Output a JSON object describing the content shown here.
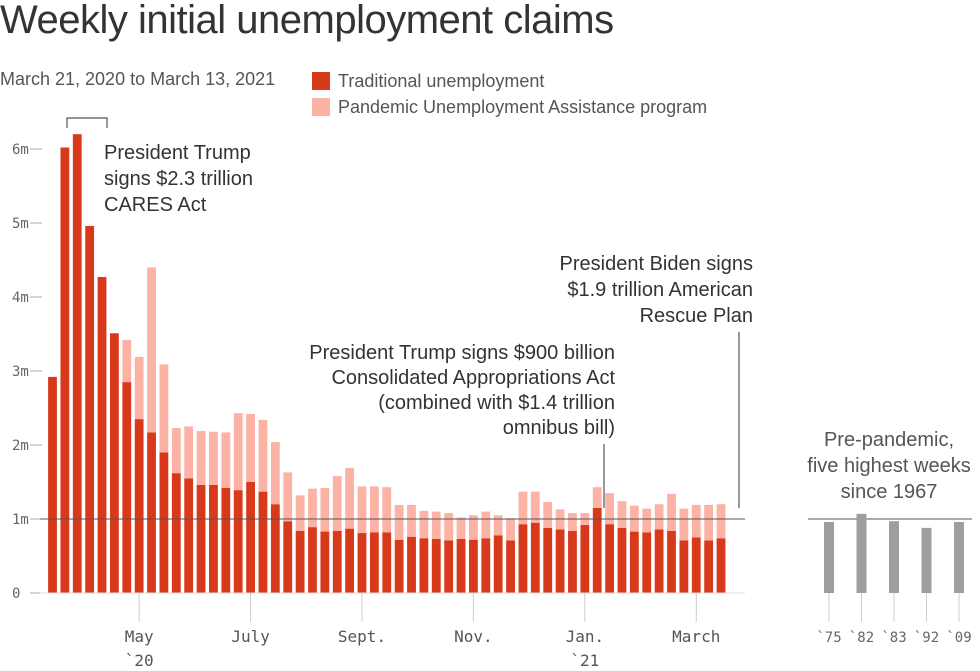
{
  "header": {
    "title": "Weekly initial unemployment claims",
    "subtitle": "March 21, 2020 to March 13, 2021"
  },
  "legend": {
    "items": [
      {
        "label": "Traditional unemployment",
        "color": "#d9391b"
      },
      {
        "label": "Pandemic Unemployment Assistance program",
        "color": "#fcb3a6"
      }
    ]
  },
  "annotations": {
    "cares": [
      "President Trump",
      "signs $2.3 trillion",
      "CARES Act"
    ],
    "caa": [
      "President Trump signs $900 billion",
      "Consolidated Appropriations Act",
      "(combined with $1.4 trillion",
      "omnibus bill)"
    ],
    "arp": [
      "President Biden signs",
      "$1.9 trillion American",
      "Rescue Plan"
    ],
    "prepandemic": [
      "Pre-pandemic,",
      "five highest weeks",
      "since 1967"
    ]
  },
  "chart_data": [
    {
      "type": "bar",
      "stacked": true,
      "title": "Weekly initial unemployment claims",
      "subtitle": "March 21, 2020 to March 13, 2021",
      "y_ticks": [
        "0",
        "1m",
        "2m",
        "3m",
        "4m",
        "5m",
        "6m"
      ],
      "ylim": [
        0,
        6.5
      ],
      "x_ticks": [
        {
          "label": "May",
          "sub": "`20",
          "index": 7
        },
        {
          "label": "July",
          "sub": "",
          "index": 16
        },
        {
          "label": "Sept.",
          "sub": "",
          "index": 25
        },
        {
          "label": "Nov.",
          "sub": "",
          "index": 34
        },
        {
          "label": "Jan.",
          "sub": "`21",
          "index": 43
        },
        {
          "label": "March",
          "sub": "",
          "index": 52
        }
      ],
      "reference_line": 1.0,
      "series": [
        {
          "name": "Traditional unemployment",
          "color": "#d9391b",
          "values": [
            2.92,
            6.02,
            6.2,
            4.96,
            4.27,
            3.51,
            2.85,
            2.35,
            2.17,
            1.9,
            1.62,
            1.55,
            1.46,
            1.46,
            1.42,
            1.39,
            1.5,
            1.37,
            1.2,
            0.97,
            0.84,
            0.89,
            0.83,
            0.84,
            0.87,
            0.81,
            0.82,
            0.82,
            0.72,
            0.76,
            0.74,
            0.73,
            0.71,
            0.73,
            0.72,
            0.74,
            0.78,
            0.71,
            0.93,
            0.95,
            0.88,
            0.86,
            0.84,
            0.92,
            1.15,
            0.93,
            0.88,
            0.83,
            0.82,
            0.86,
            0.84,
            0.71,
            0.75,
            0.71,
            0.74
          ]
        },
        {
          "name": "Pandemic Unemployment Assistance program",
          "color": "#fcb3a6",
          "values": [
            0,
            0,
            0,
            0,
            0,
            0,
            0.57,
            0.84,
            2.23,
            1.19,
            0.61,
            0.7,
            0.73,
            0.72,
            0.75,
            1.04,
            0.92,
            0.97,
            0.84,
            0.66,
            0.48,
            0.52,
            0.59,
            0.74,
            0.82,
            0.63,
            0.62,
            0.61,
            0.47,
            0.43,
            0.37,
            0.37,
            0.37,
            0.29,
            0.33,
            0.36,
            0.27,
            0.3,
            0.44,
            0.42,
            0.35,
            0.27,
            0.24,
            0.16,
            0.28,
            0.42,
            0.36,
            0.35,
            0.32,
            0.34,
            0.5,
            0.43,
            0.44,
            0.48,
            0.46
          ]
        }
      ]
    },
    {
      "type": "bar",
      "title": "Pre-pandemic, five highest weeks since 1967",
      "categories": [
        "`75",
        "`82",
        "`83",
        "`92",
        "`09"
      ],
      "values": [
        0.96,
        1.07,
        0.97,
        0.88,
        0.96
      ],
      "color": "#9e9e9e",
      "reference_line": 1.0
    }
  ]
}
